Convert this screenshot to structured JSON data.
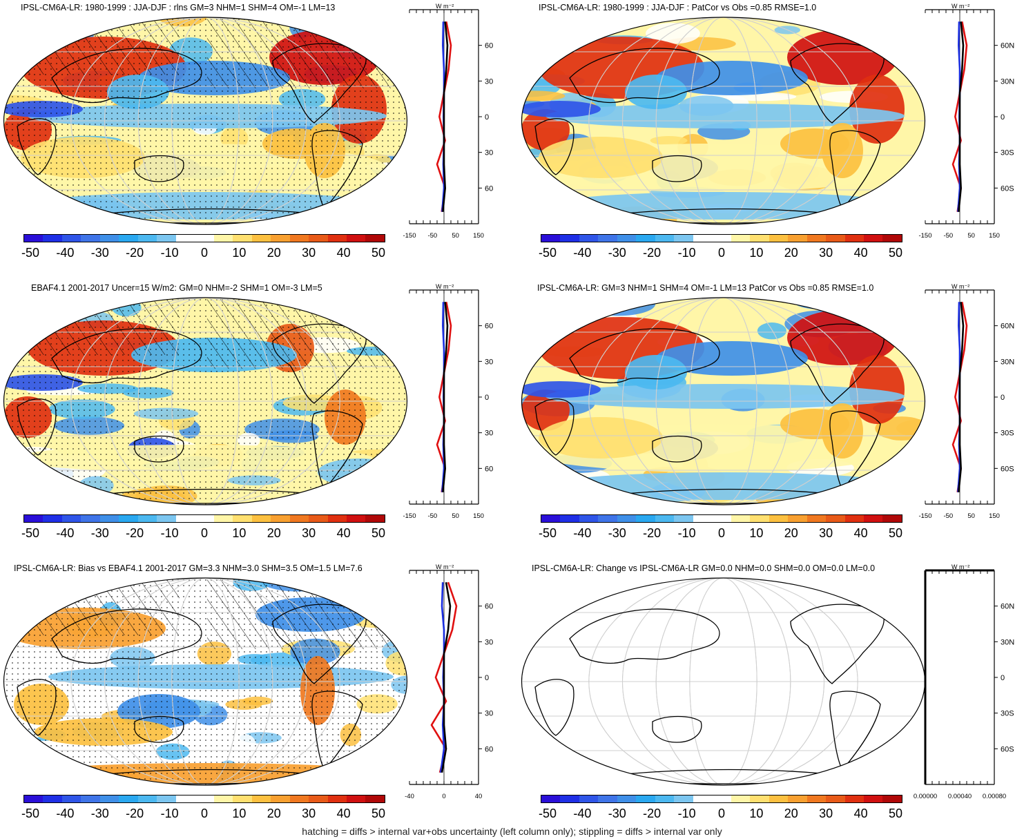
{
  "panels": [
    {
      "title": "IPSL-CM6A-LR: 1980-1999 : JJA-DJF : rlns GM=3 NHM=1 SHM=4 OM=-1 LM=13",
      "profile_xticks": [
        "-150",
        "-50",
        "50",
        "150"
      ],
      "profile_xlim": [
        -150,
        150
      ],
      "map_style": "model",
      "hatched": true
    },
    {
      "title": "IPSL-CM6A-LR: 1980-1999 : JJA-DJF : PatCor vs Obs =0.85 RMSE=1.0",
      "profile_xticks": [
        "-150",
        "-50",
        "50",
        "150"
      ],
      "profile_xlim": [
        -150,
        150
      ],
      "map_style": "model",
      "hatched": false
    },
    {
      "title": "EBAF4.1 2001-2017 Uncer=15 W/m2: GM=0 NHM=-2 SHM=1 OM=-3 LM=5",
      "profile_xticks": [
        "-150",
        "-50",
        "50",
        "150"
      ],
      "profile_xlim": [
        -150,
        150
      ],
      "map_style": "obs",
      "hatched": true
    },
    {
      "title": "IPSL-CM6A-LR: GM=3 NHM=1 SHM=4 OM=-1 LM=13 PatCor vs Obs =0.85 RMSE=1.0",
      "profile_xticks": [
        "-150",
        "-50",
        "50",
        "150"
      ],
      "profile_xlim": [
        -150,
        150
      ],
      "map_style": "model",
      "hatched": false
    },
    {
      "title": "IPSL-CM6A-LR: Bias vs EBAF4.1 2001-2017 GM=3.3 NHM=3.0 SHM=3.5 OM=1.5 LM=7.6",
      "profile_xticks": [
        "-40",
        "0",
        "40"
      ],
      "profile_xlim": [
        -50,
        50
      ],
      "map_style": "bias",
      "hatched": true
    },
    {
      "title": "IPSL-CM6A-LR: Change vs IPSL-CM6A-LR GM=0.0 NHM=0.0 SHM=0.0 OM=0.0 LM=0.0",
      "profile_xticks": [
        "0.00000",
        "0.00040",
        "0.00080"
      ],
      "profile_xlim": [
        0,
        0.001
      ],
      "map_style": "blank",
      "hatched": false
    }
  ],
  "profile_unit": "W m⁻²",
  "lat_ticks": [
    "60N",
    "30N",
    "0",
    "30S",
    "60S"
  ],
  "colorbar": {
    "colors": [
      "#2a0fd8",
      "#1f2fe6",
      "#2f55e8",
      "#3f74e8",
      "#3f8fe8",
      "#2aa8f0",
      "#4cb8f0",
      "#7cc6f0",
      "#ffffff",
      "#ffffff",
      "#fff6a8",
      "#ffe070",
      "#fcc040",
      "#f8a030",
      "#f07820",
      "#e85a18",
      "#e03010",
      "#d01010",
      "#b00808"
    ],
    "labels": [
      "-50",
      "-40",
      "-30",
      "-20",
      "-10",
      "0",
      "10",
      "20",
      "30",
      "40",
      "50"
    ]
  },
  "chart_data": {
    "type": "heatmap",
    "variable": "rlns",
    "legend_colors_w_m2": [
      -50,
      -45,
      -40,
      -35,
      -30,
      -25,
      -20,
      -15,
      -10,
      -5,
      0,
      5,
      10,
      15,
      20,
      25,
      30,
      35,
      40,
      45,
      50
    ],
    "profiles_lat": [
      -80,
      -60,
      -40,
      -20,
      0,
      20,
      40,
      60,
      80
    ],
    "model_profile_w_m2": [
      -5,
      5,
      0,
      0,
      0,
      0,
      10,
      15,
      5
    ],
    "obs_profile_w_m2": [
      -10,
      5,
      -30,
      5,
      -20,
      0,
      20,
      30,
      10
    ],
    "model2_profile_w_m2": [
      -8,
      0,
      -3,
      0,
      -2,
      0,
      0,
      -5,
      -3
    ]
  },
  "footnote": "hatching = diffs > internal var+obs uncertainty (left column only); stippling = diffs > internal var only"
}
